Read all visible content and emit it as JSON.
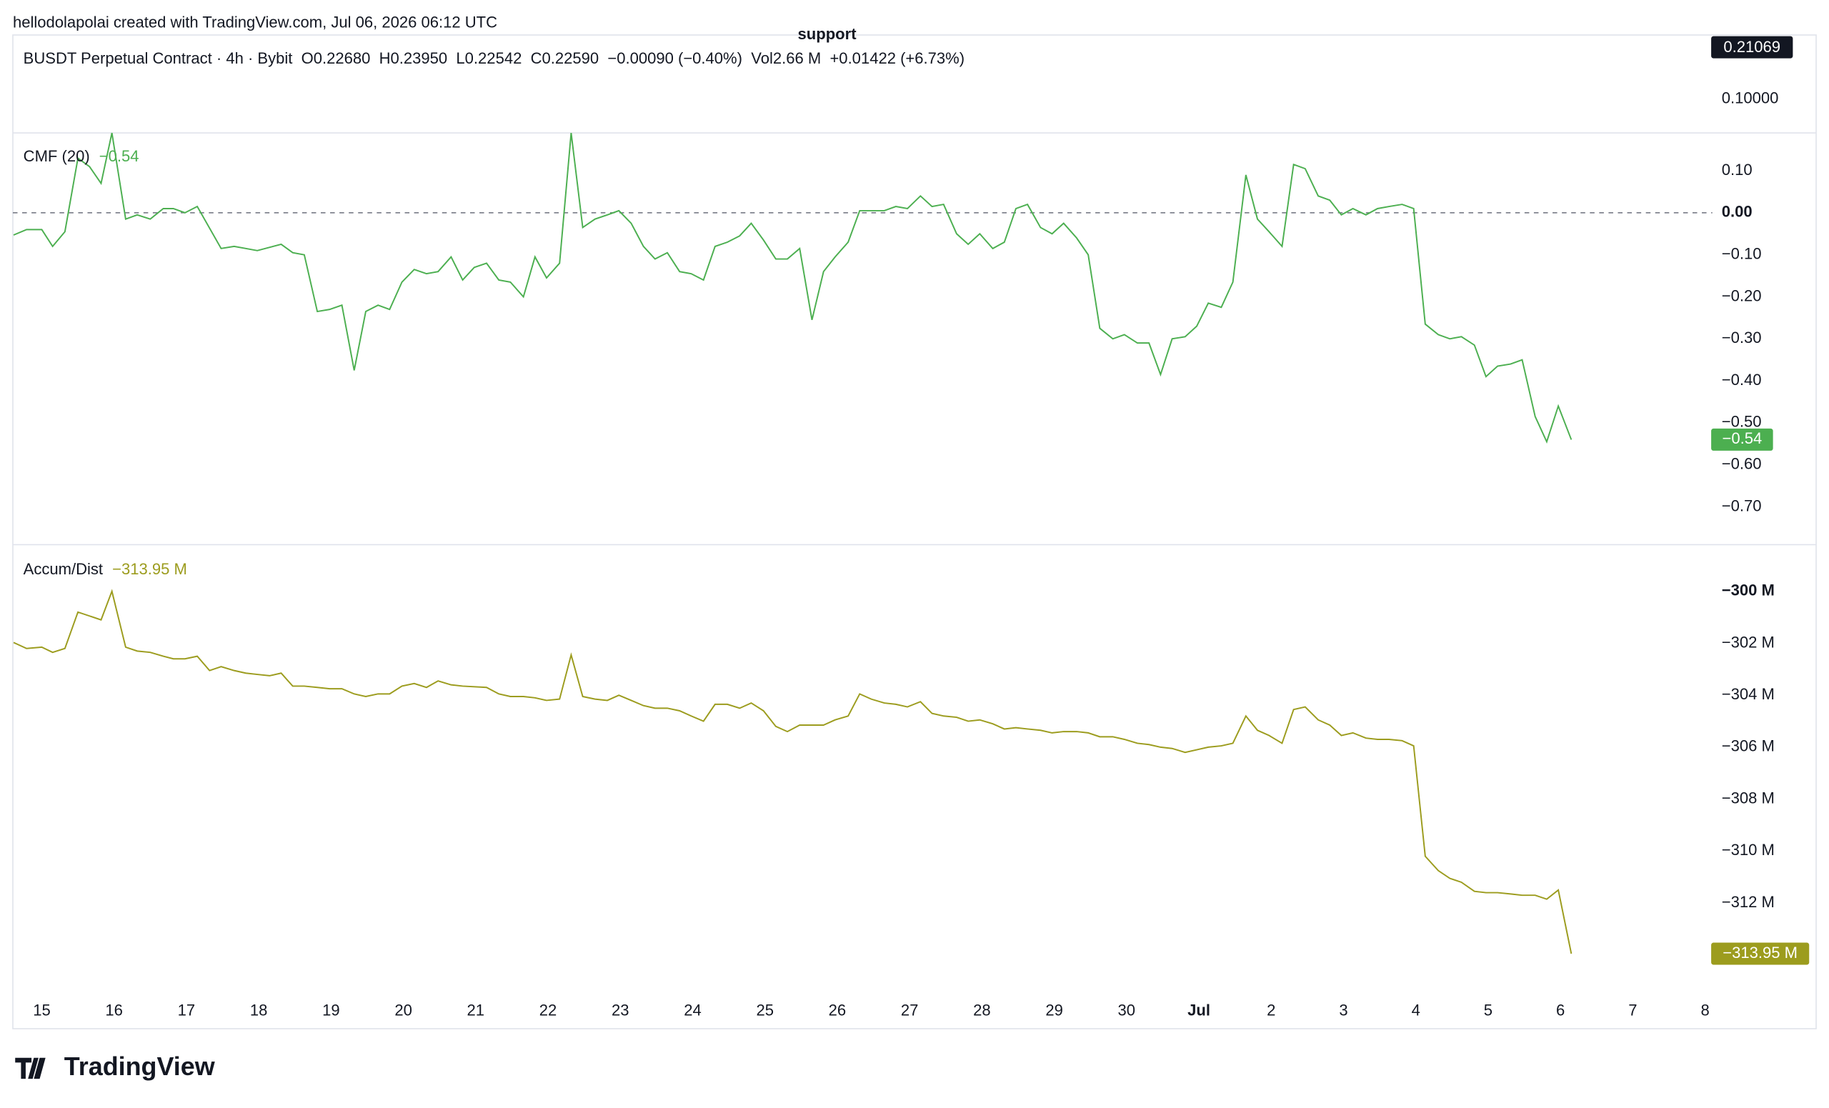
{
  "header": {
    "credit": "hellodolapolai created with TradingView.com, Jul 06, 2026 06:12 UTC",
    "symbol_line": "BUSDT Perpetual Contract · 4h · Bybit  O0.22680  H0.23950  L0.22542  C0.22590  −0.00090 (−0.40%)  Vol2.66 M  +0.01422 (+6.73%)"
  },
  "price_pane": {
    "annotation": "support",
    "price_tag": "0.21069",
    "axis_label": "0.10000"
  },
  "footer": {
    "logo": "TradingView"
  },
  "chart_data": [
    {
      "type": "line",
      "xlim": [
        -0.4,
        23.1
      ],
      "ylim": [
        -0.79,
        0.19
      ],
      "hline": 0,
      "yticks": [
        {
          "value": 0.1,
          "label": "0.10"
        },
        {
          "value": 0,
          "label": "0.00"
        },
        {
          "value": -0.1,
          "label": "−0.10"
        },
        {
          "value": -0.2,
          "label": "−0.20"
        },
        {
          "value": -0.3,
          "label": "−0.30"
        },
        {
          "value": -0.4,
          "label": "−0.40"
        },
        {
          "value": -0.5,
          "label": "−0.50"
        },
        {
          "value": -0.6,
          "label": "−0.60"
        },
        {
          "value": -0.7,
          "label": "−0.70"
        }
      ],
      "x": [
        -0.39,
        -0.21,
        0,
        0.15,
        0.32,
        0.5,
        0.66,
        0.82,
        0.97,
        1.16,
        1.32,
        1.5,
        1.68,
        1.82,
        1.98,
        2.15,
        2.48,
        2.66,
        2.82,
        2.98,
        3.31,
        3.47,
        3.63,
        3.81,
        3.98,
        4.15,
        4.32,
        4.48,
        4.65,
        4.81,
        4.98,
        5.15,
        5.32,
        5.48,
        5.66,
        5.82,
        5.98,
        6.15,
        6.32,
        6.48,
        6.66,
        6.82,
        6.98,
        7.16,
        7.32,
        7.48,
        7.65,
        7.82,
        7.98,
        8.15,
        8.32,
        8.48,
        8.65,
        8.82,
        8.98,
        9.15,
        9.31,
        9.48,
        9.65,
        9.81,
        9.98,
        10.15,
        10.31,
        10.48,
        10.65,
        10.81,
        10.97,
        11.15,
        11.31,
        11.47,
        11.65,
        11.81,
        11.97,
        12.15,
        12.31,
        12.47,
        12.65,
        12.81,
        12.97,
        13.15,
        13.31,
        13.47,
        13.63,
        13.81,
        13.97,
        14.13,
        14.31,
        14.47,
        14.63,
        14.81,
        14.97,
        15.15,
        15.31,
        15.47,
        15.63,
        15.81,
        15.97,
        16.13,
        16.31,
        16.47,
        16.65,
        16.81,
        16.97,
        17.15,
        17.31,
        17.47,
        17.65,
        17.81,
        17.97,
        18.13,
        18.31,
        18.47,
        18.63,
        18.81,
        18.97,
        19.13,
        19.31,
        19.47,
        19.63,
        19.81,
        19.97,
        20.13,
        20.31,
        20.47,
        20.65,
        20.81,
        20.97,
        21.15
      ],
      "series": [
        {
          "name": "CMF (20)",
          "color": "#4caf50",
          "last_value_label": "−0.54",
          "values": [
            -0.053,
            -0.04,
            -0.04,
            -0.08,
            -0.045,
            0.13,
            0.11,
            0.07,
            0.19,
            -0.015,
            -0.005,
            -0.015,
            0.01,
            0.01,
            0,
            0.015,
            -0.085,
            -0.08,
            -0.085,
            -0.09,
            -0.075,
            -0.095,
            -0.1,
            -0.235,
            -0.23,
            -0.22,
            -0.375,
            -0.235,
            -0.22,
            -0.23,
            -0.165,
            -0.135,
            -0.145,
            -0.14,
            -0.105,
            -0.16,
            -0.13,
            -0.12,
            -0.16,
            -0.165,
            -0.2,
            -0.105,
            -0.155,
            -0.12,
            0.19,
            -0.035,
            -0.015,
            -0.005,
            0.005,
            -0.025,
            -0.08,
            -0.11,
            -0.095,
            -0.14,
            -0.145,
            -0.16,
            -0.08,
            -0.07,
            -0.055,
            -0.025,
            -0.065,
            -0.11,
            -0.11,
            -0.085,
            -0.255,
            -0.14,
            -0.105,
            -0.07,
            0.005,
            0.005,
            0.005,
            0.015,
            0.01,
            0.04,
            0.015,
            0.02,
            -0.05,
            -0.075,
            -0.05,
            -0.085,
            -0.07,
            0.01,
            0.02,
            -0.035,
            -0.05,
            -0.025,
            -0.06,
            -0.1,
            -0.275,
            -0.3,
            -0.29,
            -0.31,
            -0.31,
            -0.385,
            -0.3,
            -0.295,
            -0.27,
            -0.215,
            -0.225,
            -0.165,
            0.09,
            -0.015,
            -0.045,
            -0.08,
            0.115,
            0.105,
            0.04,
            0.03,
            -0.005,
            0.01,
            -0.005,
            0.01,
            0.015,
            0.02,
            0.01,
            -0.265,
            -0.29,
            -0.3,
            -0.295,
            -0.315,
            -0.39,
            -0.365,
            -0.36,
            -0.35,
            -0.485,
            -0.545,
            -0.46,
            -0.54
          ]
        }
      ]
    },
    {
      "type": "line",
      "xlim": [
        -0.4,
        23.1
      ],
      "ylim": [
        -315.4,
        -298.25
      ],
      "yticks": [
        {
          "value": -300,
          "label": "−300 M"
        },
        {
          "value": -302,
          "label": "−302 M"
        },
        {
          "value": -304,
          "label": "−304 M"
        },
        {
          "value": -306,
          "label": "−306 M"
        },
        {
          "value": -308,
          "label": "−308 M"
        },
        {
          "value": -310,
          "label": "−310 M"
        },
        {
          "value": -312,
          "label": "−312 M"
        }
      ],
      "xticks": [
        {
          "value": 0,
          "label": "15"
        },
        {
          "value": 1,
          "label": "16"
        },
        {
          "value": 2,
          "label": "17"
        },
        {
          "value": 3,
          "label": "18"
        },
        {
          "value": 4,
          "label": "19"
        },
        {
          "value": 5,
          "label": "20"
        },
        {
          "value": 6,
          "label": "21"
        },
        {
          "value": 7,
          "label": "22"
        },
        {
          "value": 8,
          "label": "23"
        },
        {
          "value": 9,
          "label": "24"
        },
        {
          "value": 10,
          "label": "25"
        },
        {
          "value": 11,
          "label": "26"
        },
        {
          "value": 12,
          "label": "27"
        },
        {
          "value": 13,
          "label": "28"
        },
        {
          "value": 14,
          "label": "29"
        },
        {
          "value": 15,
          "label": "30"
        },
        {
          "value": 16,
          "label": "Jul"
        },
        {
          "value": 17,
          "label": "2"
        },
        {
          "value": 18,
          "label": "3"
        },
        {
          "value": 19,
          "label": "4"
        },
        {
          "value": 20,
          "label": "5"
        },
        {
          "value": 21,
          "label": "6"
        },
        {
          "value": 22,
          "label": "7"
        },
        {
          "value": 23,
          "label": "8"
        }
      ],
      "x": [
        -0.39,
        -0.21,
        0,
        0.15,
        0.32,
        0.5,
        0.66,
        0.82,
        0.97,
        1.16,
        1.32,
        1.5,
        1.68,
        1.82,
        1.98,
        2.15,
        2.32,
        2.48,
        2.66,
        2.82,
        2.98,
        3.15,
        3.31,
        3.47,
        3.63,
        3.81,
        3.98,
        4.15,
        4.32,
        4.48,
        4.65,
        4.81,
        4.98,
        5.15,
        5.32,
        5.48,
        5.66,
        5.82,
        6.15,
        6.32,
        6.48,
        6.66,
        6.82,
        6.98,
        7.16,
        7.32,
        7.48,
        7.65,
        7.82,
        7.98,
        8.15,
        8.32,
        8.48,
        8.65,
        8.82,
        8.98,
        9.15,
        9.31,
        9.48,
        9.65,
        9.81,
        9.98,
        10.15,
        10.31,
        10.48,
        10.65,
        10.81,
        10.97,
        11.15,
        11.31,
        11.47,
        11.65,
        11.81,
        11.97,
        12.15,
        12.31,
        12.47,
        12.65,
        12.81,
        12.97,
        13.15,
        13.31,
        13.47,
        13.63,
        13.81,
        13.97,
        14.13,
        14.31,
        14.47,
        14.63,
        14.81,
        14.97,
        15.15,
        15.31,
        15.47,
        15.63,
        15.81,
        15.97,
        16.13,
        16.31,
        16.47,
        16.65,
        16.81,
        16.97,
        17.15,
        17.31,
        17.47,
        17.65,
        17.81,
        17.97,
        18.13,
        18.31,
        18.47,
        18.63,
        18.81,
        18.97,
        19.13,
        19.31,
        19.47,
        19.63,
        19.81,
        19.97,
        20.13,
        20.31,
        20.47,
        20.65,
        20.81,
        20.97,
        21.15
      ],
      "series": [
        {
          "name": "Accum/Dist",
          "color": "#9c9c1e",
          "last_value_label": "−313.95 M",
          "values": [
            -301.97,
            -302.2,
            -302.15,
            -302.35,
            -302.2,
            -300.8,
            -300.95,
            -301.1,
            -300,
            -302.15,
            -302.3,
            -302.35,
            -302.5,
            -302.6,
            -302.6,
            -302.5,
            -303.05,
            -302.9,
            -303.05,
            -303.15,
            -303.2,
            -303.25,
            -303.15,
            -303.65,
            -303.65,
            -303.7,
            -303.75,
            -303.75,
            -303.95,
            -304.05,
            -303.95,
            -303.95,
            -303.65,
            -303.55,
            -303.7,
            -303.45,
            -303.6,
            -303.65,
            -303.7,
            -303.95,
            -304.05,
            -304.05,
            -304.1,
            -304.2,
            -304.15,
            -302.45,
            -304.05,
            -304.15,
            -304.2,
            -304,
            -304.2,
            -304.4,
            -304.5,
            -304.5,
            -304.6,
            -304.8,
            -305,
            -304.35,
            -304.35,
            -304.5,
            -304.3,
            -304.6,
            -305.2,
            -305.4,
            -305.15,
            -305.15,
            -305.15,
            -304.95,
            -304.8,
            -303.95,
            -304.15,
            -304.3,
            -304.35,
            -304.45,
            -304.25,
            -304.7,
            -304.8,
            -304.85,
            -305,
            -304.95,
            -305.1,
            -305.3,
            -305.25,
            -305.3,
            -305.35,
            -305.45,
            -305.4,
            -305.4,
            -305.45,
            -305.6,
            -305.6,
            -305.7,
            -305.85,
            -305.9,
            -306,
            -306.05,
            -306.2,
            -306.1,
            -306,
            -305.95,
            -305.85,
            -304.8,
            -305.35,
            -305.55,
            -305.85,
            -304.55,
            -304.45,
            -304.95,
            -305.15,
            -305.55,
            -305.45,
            -305.65,
            -305.7,
            -305.7,
            -305.75,
            -305.95,
            -310.2,
            -310.75,
            -311.05,
            -311.2,
            -311.55,
            -311.6,
            -311.6,
            -311.65,
            -311.7,
            -311.7,
            -311.85,
            -311.5,
            -313.95
          ]
        }
      ]
    }
  ]
}
